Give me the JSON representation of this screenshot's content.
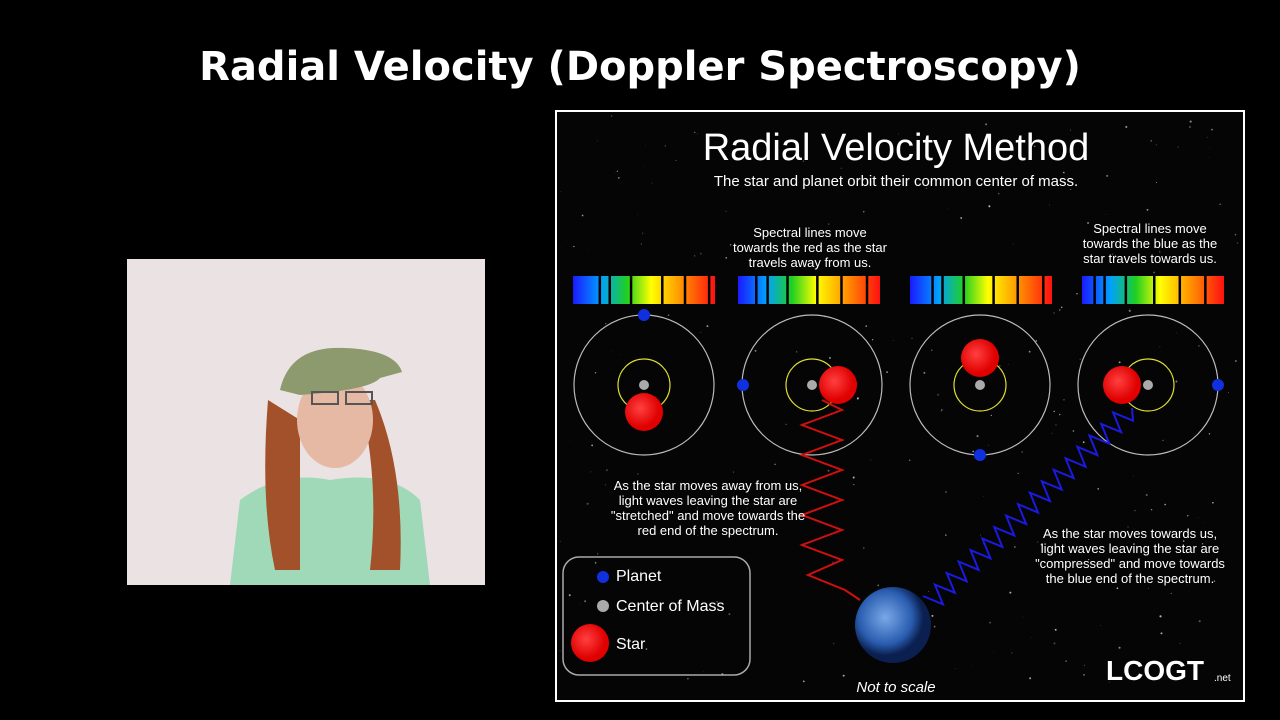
{
  "slide_title": "Radial Velocity (Doppler Spectroscopy)",
  "diagram": {
    "title": "Radial Velocity Method",
    "subtitle": "The star and planet orbit their common center of mass.",
    "red_caption": [
      "Spectral lines move",
      "towards the red as the star",
      "travels away from us."
    ],
    "blue_caption": [
      "Spectral lines move",
      "towards the blue as the",
      "star travels towards us."
    ],
    "away_text": [
      "As the star moves away from us,",
      "light waves leaving the star are",
      "\"stretched\" and move towards the",
      "red end of the spectrum."
    ],
    "towards_text": [
      "As the star moves towards us,",
      "light waves leaving the star are",
      "\"compressed\" and move towards",
      "the blue end of the spectrum."
    ],
    "legend": [
      "Planet",
      "Center of Mass",
      "Star"
    ],
    "note": "Not to scale",
    "logo": "LCOGT",
    "logo_suffix": ".net"
  }
}
